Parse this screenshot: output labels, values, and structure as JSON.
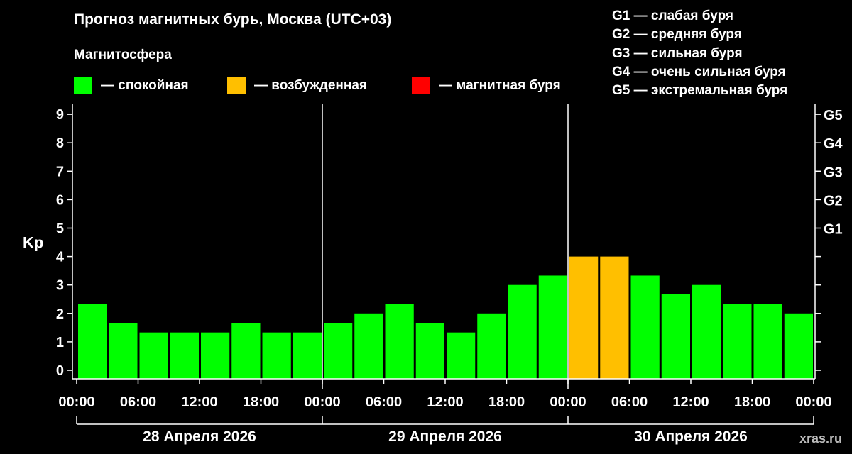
{
  "title": "Прогноз магнитных бурь, Москва (UTC+03)",
  "subtitle": "Магнитосфера",
  "watermark": "xras.ru",
  "legend": [
    {
      "label": "— спокойная",
      "color": "#00ff00"
    },
    {
      "label": "— возбужденная",
      "color": "#ffbf00"
    },
    {
      "label": "— магнитная буря",
      "color": "#ff0000"
    }
  ],
  "storm_levels": [
    "G1 — слабая буря",
    "G2 — средняя буря",
    "G3 — сильная буря",
    "G4 — очень сильная буря",
    "G5 — экстремальная буря"
  ],
  "chart_data": {
    "type": "bar",
    "ylabel": "Kp",
    "ylim": [
      0,
      9
    ],
    "yticks": [
      "0",
      "1",
      "2",
      "3",
      "4",
      "5",
      "6",
      "7",
      "8",
      "9"
    ],
    "right_axis_labels": [
      {
        "kp": 5,
        "label": "G1"
      },
      {
        "kp": 6,
        "label": "G2"
      },
      {
        "kp": 7,
        "label": "G3"
      },
      {
        "kp": 8,
        "label": "G4"
      },
      {
        "kp": 9,
        "label": "G5"
      }
    ],
    "xtick_labels": [
      "00:00",
      "06:00",
      "12:00",
      "18:00",
      "00:00",
      "06:00",
      "12:00",
      "18:00",
      "00:00",
      "06:00",
      "12:00",
      "18:00",
      "00:00"
    ],
    "days": [
      "28 Апреля 2026",
      "29 Апреля 2026",
      "30 Апреля 2026"
    ],
    "interval_hours": 3,
    "values": [
      2.33,
      1.67,
      1.33,
      1.33,
      1.33,
      1.67,
      1.33,
      1.33,
      1.67,
      2.0,
      2.33,
      1.67,
      1.33,
      2.0,
      3.0,
      3.33,
      4.0,
      4.0,
      3.33,
      2.67,
      3.0,
      2.33,
      2.33,
      2.0
    ],
    "colors": [
      "#00ff00",
      "#00ff00",
      "#00ff00",
      "#00ff00",
      "#00ff00",
      "#00ff00",
      "#00ff00",
      "#00ff00",
      "#00ff00",
      "#00ff00",
      "#00ff00",
      "#00ff00",
      "#00ff00",
      "#00ff00",
      "#00ff00",
      "#00ff00",
      "#ffbf00",
      "#ffbf00",
      "#00ff00",
      "#00ff00",
      "#00ff00",
      "#00ff00",
      "#00ff00",
      "#00ff00"
    ]
  }
}
